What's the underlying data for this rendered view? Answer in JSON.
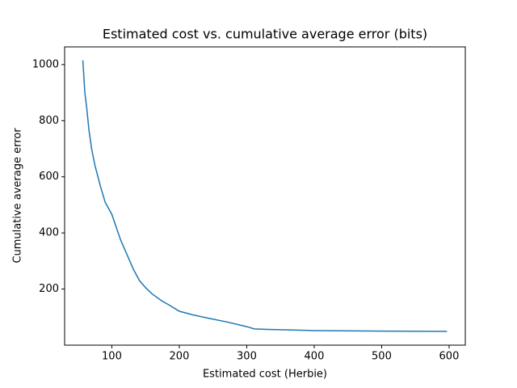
{
  "chart_data": {
    "type": "line",
    "title": "Estimated cost vs. cumulative average error (bits)",
    "x_label": "Estimated cost (Herbie)",
    "y_label": "Cumulative average error",
    "x": [
      57,
      60,
      63,
      66,
      70,
      75,
      83,
      90,
      100,
      113,
      123,
      132,
      141,
      150,
      160,
      174,
      187,
      200,
      220,
      245,
      270,
      300,
      311,
      330,
      400,
      500,
      597
    ],
    "series": [
      {
        "name": "error",
        "color": "#1f77b4",
        "values": [
          1015,
          900,
          840,
          768,
          700,
          640,
          567,
          510,
          466,
          375,
          320,
          270,
          230,
          205,
          182,
          158,
          140,
          121,
          108,
          95,
          83,
          66,
          58,
          56,
          52,
          50,
          49
        ]
      }
    ],
    "xlim": [
      30,
      624
    ],
    "ylim": [
      0,
      1063
    ],
    "xticks": [
      100,
      200,
      300,
      400,
      500,
      600
    ],
    "yticks": [
      200,
      400,
      600,
      800,
      1000
    ],
    "grid": false
  }
}
